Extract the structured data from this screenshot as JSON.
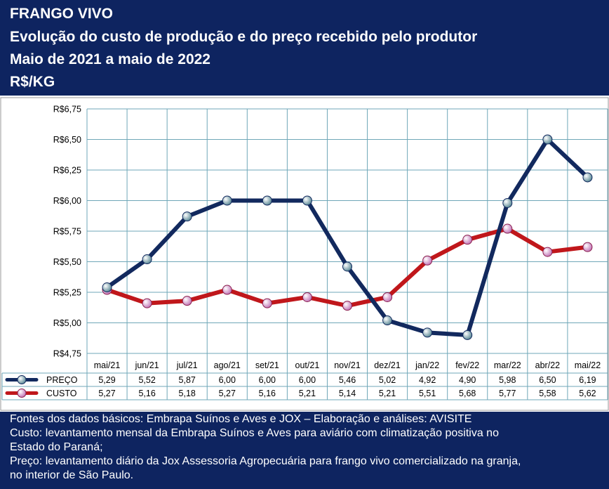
{
  "header": {
    "title": "FRANGO VIVO",
    "subtitle": "Evolução do custo de produção e do preço recebido pelo produtor",
    "period": "Maio de 2021 a maio de 2022",
    "unit": "R$/KG"
  },
  "footer": {
    "lines": [
      "Fontes dos dados básicos: Embrapa Suínos e Aves e JOX – Elaboração e análises: AVISITE",
      "Custo: levantamento mensal da Embrapa Suínos e Aves para aviário com climatização positiva no",
      "Estado do Paraná;",
      "Preço: levantamento diário da Jox Assessoria Agropecuária para frango vivo comercializado na granja,",
      "no interior de São Paulo."
    ]
  },
  "colors": {
    "header_bg": "#0e2460",
    "preco": "#12295e",
    "custo": "#c0171b",
    "grid": "#6fa7b8"
  },
  "chart_data": {
    "type": "line",
    "categories": [
      "mai/21",
      "jun/21",
      "jul/21",
      "ago/21",
      "set/21",
      "out/21",
      "nov/21",
      "dez/21",
      "jan/22",
      "fev/22",
      "mar/22",
      "abr/22",
      "mai/22"
    ],
    "yticks": [
      "R$6,75",
      "R$6,50",
      "R$6,25",
      "R$6,00",
      "R$5,75",
      "R$5,50",
      "R$5,25",
      "R$5,00",
      "R$4,75"
    ],
    "ylim": [
      4.75,
      6.75
    ],
    "grid": true,
    "legend": "table-below",
    "series": [
      {
        "name": "PREÇO",
        "values": [
          5.29,
          5.52,
          5.87,
          6.0,
          6.0,
          6.0,
          5.46,
          5.02,
          4.92,
          4.9,
          5.98,
          6.5,
          6.19
        ],
        "labels": [
          "5,29",
          "5,52",
          "5,87",
          "6,00",
          "6,00",
          "6,00",
          "5,46",
          "5,02",
          "4,92",
          "4,90",
          "5,98",
          "6,50",
          "6,19"
        ]
      },
      {
        "name": "CUSTO",
        "values": [
          5.27,
          5.16,
          5.18,
          5.27,
          5.16,
          5.21,
          5.14,
          5.21,
          5.51,
          5.68,
          5.77,
          5.58,
          5.62
        ],
        "labels": [
          "5,27",
          "5,16",
          "5,18",
          "5,27",
          "5,16",
          "5,21",
          "5,14",
          "5,21",
          "5,51",
          "5,68",
          "5,77",
          "5,58",
          "5,62"
        ]
      }
    ]
  }
}
